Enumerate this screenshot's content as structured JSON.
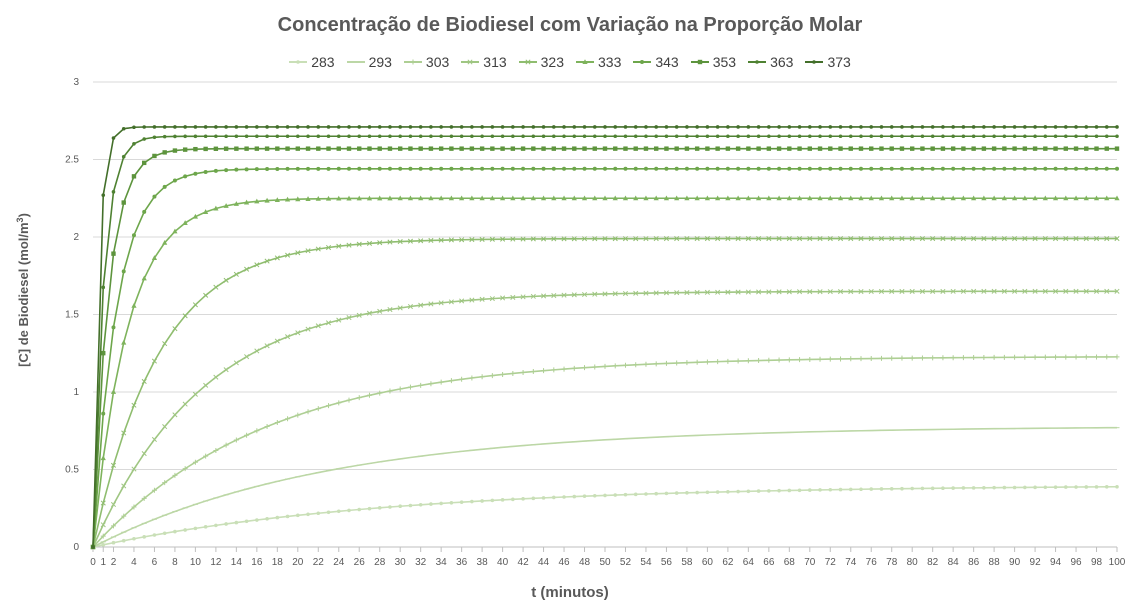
{
  "chart_data": {
    "type": "line",
    "title": "Concentração de Biodiesel com Variação na Proporção Molar",
    "xlabel": "t (minutos)",
    "ylabel_main": "[C] de Biodiesel (mol/m",
    "ylabel_sup": "3",
    "ylabel_close": ")",
    "xlim": [
      0,
      100
    ],
    "ylim": [
      0,
      3
    ],
    "x_ticks": [
      "0",
      "1",
      "2",
      "4",
      "6",
      "8",
      "10",
      "12",
      "14",
      "16",
      "18",
      "20",
      "22",
      "24",
      "26",
      "28",
      "30",
      "32",
      "34",
      "36",
      "38",
      "40",
      "42",
      "44",
      "46",
      "48",
      "50",
      "52",
      "54",
      "56",
      "58",
      "60",
      "62",
      "64",
      "66",
      "68",
      "70",
      "72",
      "74",
      "76",
      "78",
      "80",
      "82",
      "84",
      "86",
      "88",
      "90",
      "92",
      "94",
      "96",
      "98",
      "100"
    ],
    "y_ticks": [
      "0",
      "0.5",
      "1",
      "1.5",
      "2",
      "2.5",
      "3"
    ],
    "grid": "horizontal",
    "legend_position": "top",
    "x": [
      0,
      1,
      2,
      3,
      4,
      5,
      6,
      7,
      8,
      9,
      10,
      11,
      12,
      13,
      14,
      15,
      16,
      17,
      18,
      19,
      20,
      21,
      22,
      23,
      24,
      25,
      26,
      27,
      28,
      29,
      30,
      31,
      32,
      33,
      34,
      35,
      36,
      37,
      38,
      39,
      40,
      41,
      42,
      43,
      44,
      45,
      46,
      47,
      48,
      49,
      50,
      51,
      52,
      53,
      54,
      55,
      56,
      57,
      58,
      59,
      60,
      61,
      62,
      63,
      64,
      65,
      66,
      67,
      68,
      69,
      70,
      71,
      72,
      73,
      74,
      75,
      76,
      77,
      78,
      79,
      80,
      81,
      82,
      83,
      84,
      85,
      86,
      87,
      88,
      89,
      90,
      91,
      92,
      93,
      94,
      95,
      96,
      97,
      98,
      99,
      100
    ],
    "series": [
      {
        "name": "283",
        "color": "#c9dfb7",
        "marker": "dot",
        "ymax": 0.4,
        "tau": 28
      },
      {
        "name": "293",
        "color": "#bcd7a6",
        "marker": "dash",
        "ymax": 0.78,
        "tau": 23
      },
      {
        "name": "303",
        "color": "#aecf94",
        "marker": "plus",
        "ymax": 1.23,
        "tau": 17
      },
      {
        "name": "313",
        "color": "#9fc682",
        "marker": "cross",
        "ymax": 1.65,
        "tau": 11
      },
      {
        "name": "323",
        "color": "#8fbd6f",
        "marker": "cross",
        "ymax": 1.99,
        "tau": 6.5
      },
      {
        "name": "333",
        "color": "#7eb35c",
        "marker": "triangle",
        "ymax": 2.25,
        "tau": 3.4
      },
      {
        "name": "343",
        "color": "#6da64b",
        "marker": "diamond",
        "ymax": 2.44,
        "tau": 2.3
      },
      {
        "name": "353",
        "color": "#5d943d",
        "marker": "square",
        "ymax": 2.57,
        "tau": 1.5
      },
      {
        "name": "363",
        "color": "#4f8232",
        "marker": "dot",
        "ymax": 2.65,
        "tau": 1.0
      },
      {
        "name": "373",
        "color": "#436f2a",
        "marker": "dot",
        "ymax": 2.71,
        "tau": 0.55
      }
    ]
  }
}
